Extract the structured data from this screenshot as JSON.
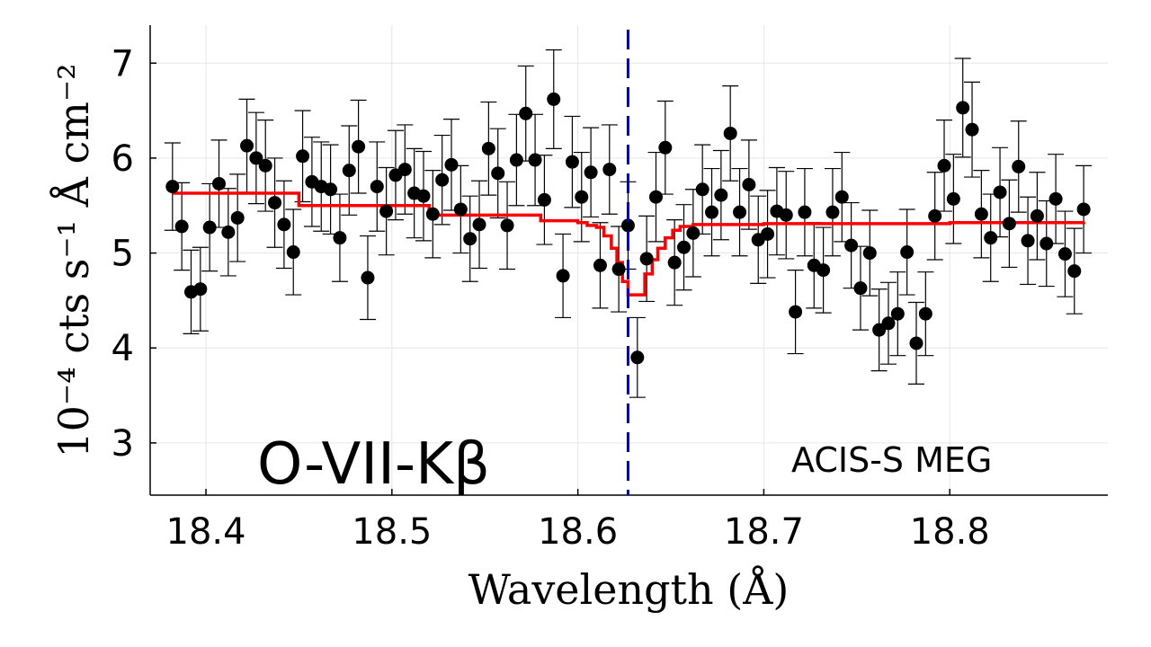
{
  "chart_data": {
    "type": "scatter",
    "xlabel": "Wavelength (Å)",
    "ylabel": "10⁻⁴ cts s⁻¹ Å cm⁻²",
    "xlim": [
      18.37,
      18.885
    ],
    "ylim": [
      2.45,
      7.4
    ],
    "xticks": [
      18.4,
      18.5,
      18.6,
      18.7,
      18.8
    ],
    "yticks": [
      3,
      4,
      5,
      6,
      7
    ],
    "xtick_labels": [
      "18.4",
      "18.5",
      "18.6",
      "18.7",
      "18.8"
    ],
    "ytick_labels": [
      "3",
      "4",
      "5",
      "6",
      "7"
    ],
    "grid": true,
    "annotations": {
      "line_name": "O-VII-Kβ",
      "instrument": "ACIS-S MEG"
    },
    "line_marker": {
      "x": 18.627,
      "color": "#0000cc",
      "style": "dashed"
    },
    "data_color": "#000000",
    "model_color": "#ff0000",
    "points": [
      [
        18.382,
        5.7,
        0.46
      ],
      [
        18.387,
        5.28,
        0.46
      ],
      [
        18.392,
        4.59,
        0.44
      ],
      [
        18.397,
        4.62,
        0.44
      ],
      [
        18.402,
        5.27,
        0.46
      ],
      [
        18.407,
        5.73,
        0.46
      ],
      [
        18.412,
        5.22,
        0.46
      ],
      [
        18.417,
        5.37,
        0.46
      ],
      [
        18.422,
        6.13,
        0.49
      ],
      [
        18.427,
        6.0,
        0.48
      ],
      [
        18.432,
        5.92,
        0.48
      ],
      [
        18.437,
        5.53,
        0.47
      ],
      [
        18.442,
        5.3,
        0.46
      ],
      [
        18.447,
        5.01,
        0.45
      ],
      [
        18.452,
        6.02,
        0.48
      ],
      [
        18.457,
        5.75,
        0.47
      ],
      [
        18.462,
        5.7,
        0.47
      ],
      [
        18.467,
        5.67,
        0.47
      ],
      [
        18.472,
        5.16,
        0.46
      ],
      [
        18.477,
        5.87,
        0.47
      ],
      [
        18.482,
        6.12,
        0.49
      ],
      [
        18.487,
        4.74,
        0.44
      ],
      [
        18.492,
        5.7,
        0.47
      ],
      [
        18.497,
        5.44,
        0.46
      ],
      [
        18.502,
        5.82,
        0.47
      ],
      [
        18.507,
        5.88,
        0.47
      ],
      [
        18.512,
        5.63,
        0.47
      ],
      [
        18.517,
        5.6,
        0.47
      ],
      [
        18.522,
        5.41,
        0.46
      ],
      [
        18.527,
        5.77,
        0.47
      ],
      [
        18.532,
        5.93,
        0.48
      ],
      [
        18.537,
        5.46,
        0.46
      ],
      [
        18.542,
        5.15,
        0.45
      ],
      [
        18.547,
        5.3,
        0.46
      ],
      [
        18.552,
        6.1,
        0.49
      ],
      [
        18.557,
        5.84,
        0.47
      ],
      [
        18.562,
        5.29,
        0.46
      ],
      [
        18.567,
        5.98,
        0.48
      ],
      [
        18.572,
        6.47,
        0.5
      ],
      [
        18.577,
        5.98,
        0.48
      ],
      [
        18.582,
        5.56,
        0.47
      ],
      [
        18.587,
        6.62,
        0.52
      ],
      [
        18.592,
        4.76,
        0.44
      ],
      [
        18.597,
        5.96,
        0.48
      ],
      [
        18.602,
        5.59,
        0.47
      ],
      [
        18.607,
        5.85,
        0.47
      ],
      [
        18.612,
        4.87,
        0.45
      ],
      [
        18.617,
        5.88,
        0.47
      ],
      [
        18.622,
        4.83,
        0.45
      ],
      [
        18.627,
        5.29,
        0.46
      ],
      [
        18.632,
        3.9,
        0.42
      ],
      [
        18.637,
        4.94,
        0.45
      ],
      [
        18.642,
        5.59,
        0.47
      ],
      [
        18.647,
        6.11,
        0.49
      ],
      [
        18.652,
        4.9,
        0.45
      ],
      [
        18.657,
        5.06,
        0.45
      ],
      [
        18.662,
        5.21,
        0.46
      ],
      [
        18.667,
        5.67,
        0.47
      ],
      [
        18.672,
        5.43,
        0.46
      ],
      [
        18.677,
        5.61,
        0.47
      ],
      [
        18.682,
        6.26,
        0.5
      ],
      [
        18.687,
        5.43,
        0.46
      ],
      [
        18.692,
        5.72,
        0.47
      ],
      [
        18.697,
        5.14,
        0.46
      ],
      [
        18.702,
        5.2,
        0.46
      ],
      [
        18.707,
        5.44,
        0.46
      ],
      [
        18.712,
        5.4,
        0.46
      ],
      [
        18.717,
        4.38,
        0.44
      ],
      [
        18.722,
        5.43,
        0.46
      ],
      [
        18.727,
        4.87,
        0.45
      ],
      [
        18.732,
        4.82,
        0.45
      ],
      [
        18.737,
        5.43,
        0.46
      ],
      [
        18.742,
        5.59,
        0.47
      ],
      [
        18.747,
        5.08,
        0.45
      ],
      [
        18.752,
        4.63,
        0.44
      ],
      [
        18.757,
        5.0,
        0.45
      ],
      [
        18.762,
        4.19,
        0.43
      ],
      [
        18.767,
        4.26,
        0.43
      ],
      [
        18.772,
        4.36,
        0.44
      ],
      [
        18.777,
        5.01,
        0.45
      ],
      [
        18.782,
        4.05,
        0.43
      ],
      [
        18.787,
        4.36,
        0.44
      ],
      [
        18.792,
        5.39,
        0.46
      ],
      [
        18.797,
        5.92,
        0.48
      ],
      [
        18.802,
        5.57,
        0.47
      ],
      [
        18.807,
        6.53,
        0.52
      ],
      [
        18.812,
        6.3,
        0.5
      ],
      [
        18.817,
        5.41,
        0.46
      ],
      [
        18.822,
        5.16,
        0.46
      ],
      [
        18.827,
        5.64,
        0.47
      ],
      [
        18.832,
        5.31,
        0.46
      ],
      [
        18.837,
        5.91,
        0.48
      ],
      [
        18.842,
        5.13,
        0.46
      ],
      [
        18.847,
        5.39,
        0.46
      ],
      [
        18.852,
        5.1,
        0.45
      ],
      [
        18.857,
        5.57,
        0.47
      ],
      [
        18.862,
        4.99,
        0.45
      ],
      [
        18.867,
        4.81,
        0.45
      ],
      [
        18.872,
        5.46,
        0.46
      ]
    ],
    "model": [
      [
        18.382,
        5.63
      ],
      [
        18.45,
        5.5
      ],
      [
        18.52,
        5.4
      ],
      [
        18.58,
        5.34
      ],
      [
        18.6,
        5.32
      ],
      [
        18.605,
        5.29
      ],
      [
        18.61,
        5.27
      ],
      [
        18.614,
        5.18
      ],
      [
        18.618,
        5.05
      ],
      [
        18.621,
        4.9
      ],
      [
        18.624,
        4.7
      ],
      [
        18.627,
        4.56
      ],
      [
        18.633,
        4.56
      ],
      [
        18.636,
        4.78
      ],
      [
        18.64,
        4.93
      ],
      [
        18.643,
        5.05
      ],
      [
        18.647,
        5.16
      ],
      [
        18.651,
        5.24
      ],
      [
        18.655,
        5.28
      ],
      [
        18.662,
        5.3
      ],
      [
        18.7,
        5.31
      ],
      [
        18.8,
        5.32
      ],
      [
        18.872,
        5.33
      ]
    ]
  }
}
